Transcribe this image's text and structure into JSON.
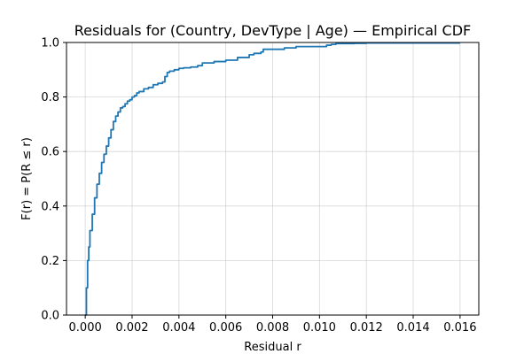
{
  "chart_data": {
    "type": "line",
    "title": "Residuals for (Country, DevType | Age) — Empirical CDF",
    "xlabel": "Residual r",
    "ylabel": "F(r) = P(R ≤ r)",
    "xlim": [
      -0.0008,
      0.0168
    ],
    "ylim": [
      0.0,
      1.0
    ],
    "grid": true,
    "line_color": "#1f77b4",
    "x_ticks": [
      0.0,
      0.002,
      0.004,
      0.006,
      0.008,
      0.01,
      0.012,
      0.014,
      0.016
    ],
    "x_tick_labels": [
      "0.000",
      "0.002",
      "0.004",
      "0.006",
      "0.008",
      "0.010",
      "0.012",
      "0.014",
      "0.016"
    ],
    "y_ticks": [
      0.0,
      0.2,
      0.4,
      0.6,
      0.8,
      1.0
    ],
    "y_tick_labels": [
      "0.0",
      "0.2",
      "0.4",
      "0.6",
      "0.8",
      "1.0"
    ],
    "series": [
      {
        "x": [
          0.0,
          5e-05,
          0.0001,
          0.00015,
          0.0002,
          0.0003,
          0.0004,
          0.0005,
          0.0006,
          0.0007,
          0.0008,
          0.0009,
          0.001,
          0.0011,
          0.0012,
          0.0013,
          0.0014,
          0.0015,
          0.0016,
          0.0017,
          0.0018,
          0.0019,
          0.002,
          0.0021,
          0.0022,
          0.0023,
          0.0025,
          0.0027,
          0.0029,
          0.0031,
          0.0033,
          0.0034,
          0.0035,
          0.0036,
          0.0038,
          0.004,
          0.0042,
          0.0045,
          0.0048,
          0.005,
          0.0055,
          0.006,
          0.0065,
          0.007,
          0.0072,
          0.0075,
          0.0076,
          0.0085,
          0.009,
          0.0103,
          0.0105,
          0.0107,
          0.0115,
          0.012,
          0.014,
          0.016
        ],
        "y": [
          0.0,
          0.1,
          0.2,
          0.25,
          0.31,
          0.37,
          0.43,
          0.48,
          0.52,
          0.56,
          0.59,
          0.62,
          0.65,
          0.68,
          0.71,
          0.73,
          0.745,
          0.76,
          0.765,
          0.775,
          0.785,
          0.79,
          0.8,
          0.805,
          0.815,
          0.82,
          0.83,
          0.835,
          0.845,
          0.85,
          0.855,
          0.875,
          0.89,
          0.895,
          0.9,
          0.905,
          0.907,
          0.91,
          0.915,
          0.925,
          0.93,
          0.935,
          0.945,
          0.955,
          0.96,
          0.965,
          0.975,
          0.98,
          0.985,
          0.99,
          0.993,
          0.996,
          0.997,
          0.998,
          0.998,
          0.998
        ]
      }
    ]
  }
}
